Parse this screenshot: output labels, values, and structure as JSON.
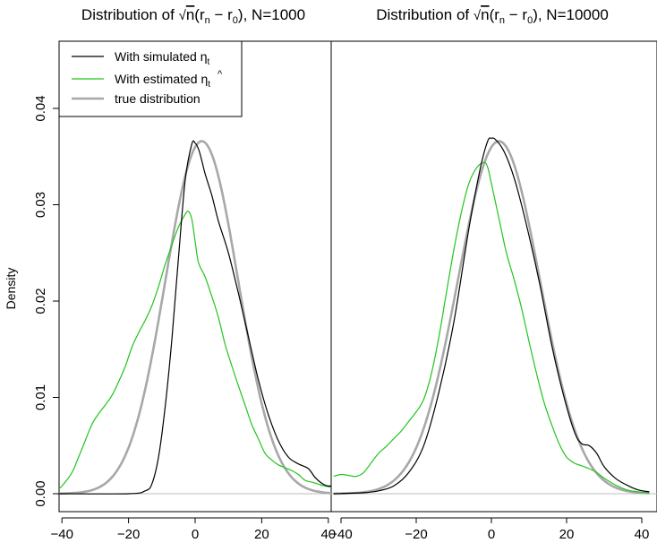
{
  "chart_data": {
    "type": "line",
    "ylabel": "Density",
    "ylim": [
      0,
      0.046
    ],
    "xlim": [
      -42,
      42
    ],
    "yticks": [
      "0.00",
      "0.01",
      "0.02",
      "0.03",
      "0.04"
    ],
    "ytick_values": [
      0,
      0.01,
      0.02,
      0.03,
      0.04
    ],
    "xtick_values": [
      -40,
      -20,
      0,
      20,
      40
    ],
    "legend": {
      "location": "top-left of left panel",
      "entries": [
        {
          "text": "With simulated η",
          "sub": "t",
          "color": "#000000"
        },
        {
          "text": "With estimated ",
          "hat": "η",
          "sub": "t",
          "color": "#00c000"
        },
        {
          "text": "true distribution",
          "color": "#a6a6a6"
        }
      ]
    },
    "colors": {
      "simulated": "#000000",
      "estimated": "#22c41e",
      "true": "#a8a8a8",
      "zero_line": "#bebebe"
    },
    "panels": [
      {
        "title_prefix": "Distribution of ",
        "title_suffix": ", N=1000",
        "xticks": [
          "−40",
          "−20",
          "0",
          "20",
          "40"
        ],
        "series": [
          {
            "name": "With simulated η_t",
            "color": "#000000",
            "x": [
              -42,
              -20,
              -15,
              -13,
              -11,
              -9,
              -7,
              -5,
              -3,
              -1,
              0,
              1,
              2,
              3,
              5,
              7,
              10,
              13,
              16,
              19,
              22,
              25,
              28,
              31,
              34,
              36,
              38,
              40,
              42
            ],
            "y": [
              0,
              0,
              0.0003,
              0.001,
              0.0038,
              0.009,
              0.016,
              0.0245,
              0.0325,
              0.0363,
              0.0364,
              0.0358,
              0.0346,
              0.0332,
              0.031,
              0.0283,
              0.025,
              0.0208,
              0.0163,
              0.0118,
              0.0082,
              0.0055,
              0.0038,
              0.0031,
              0.0026,
              0.0017,
              0.0011,
              0.0008,
              0.0009
            ]
          },
          {
            "name": "With estimated η̂_t",
            "color": "#22c41e",
            "x": [
              -42,
              -40,
              -37,
              -35,
              -33,
              -31,
              -29,
              -27,
              -25,
              -23,
              -21,
              -19,
              -17,
              -15,
              -13,
              -11,
              -9,
              -7,
              -5,
              -3,
              -2,
              -1,
              0,
              1,
              3,
              5,
              7,
              9,
              11,
              13,
              15,
              17,
              19,
              21,
              23,
              25,
              27,
              29,
              31,
              33,
              35,
              37,
              39,
              42
            ],
            "y": [
              0.0002,
              0.0008,
              0.0022,
              0.0038,
              0.0055,
              0.0072,
              0.0083,
              0.0092,
              0.0102,
              0.0116,
              0.0132,
              0.0152,
              0.0167,
              0.018,
              0.0195,
              0.0215,
              0.0238,
              0.0258,
              0.0277,
              0.029,
              0.0293,
              0.0285,
              0.0262,
              0.024,
              0.0225,
              0.0205,
              0.0183,
              0.0155,
              0.0133,
              0.0112,
              0.0092,
              0.0072,
              0.0057,
              0.0042,
              0.0035,
              0.003,
              0.0027,
              0.0024,
              0.002,
              0.0014,
              0.0012,
              0.001,
              0.0008,
              0.0006
            ]
          },
          {
            "name": "true distribution",
            "color": "#a8a8a8",
            "mu": 2.0,
            "sigma": 10.9
          }
        ]
      },
      {
        "title_prefix": "Distribution of ",
        "title_suffix": ", N=10000",
        "xticks": [
          "−40",
          "−20",
          "0",
          "20",
          "40"
        ],
        "series": [
          {
            "name": "With simulated η_t",
            "color": "#000000",
            "x": [
              -42,
              -34,
              -30,
              -26,
              -22,
              -18,
              -14,
              -10,
              -6,
              -3,
              -1,
              0,
              1,
              3,
              5,
              7,
              10,
              13,
              16,
              19,
              22,
              24,
              26,
              28,
              30,
              33,
              36,
              39,
              42
            ],
            "y": [
              0,
              0.0001,
              0.0003,
              0.0008,
              0.0022,
              0.005,
              0.0105,
              0.0178,
              0.0275,
              0.0337,
              0.0366,
              0.0369,
              0.0368,
              0.0358,
              0.034,
              0.0315,
              0.0268,
              0.0215,
              0.0155,
              0.0105,
              0.0065,
              0.0052,
              0.005,
              0.0042,
              0.0028,
              0.0016,
              0.0009,
              0.0004,
              0.0002
            ]
          },
          {
            "name": "With estimated η̂_t",
            "color": "#22c41e",
            "x": [
              -42,
              -40,
              -38,
              -36,
              -34,
              -32,
              -30,
              -28,
              -26,
              -24,
              -22,
              -20,
              -18,
              -16,
              -14,
              -12,
              -10,
              -8,
              -6,
              -4,
              -2,
              -1,
              0,
              2,
              4,
              6,
              8,
              10,
              12,
              14,
              16,
              18,
              20,
              22,
              24,
              26,
              28,
              30,
              33,
              36,
              39,
              42
            ],
            "y": [
              0.0018,
              0.002,
              0.0019,
              0.0018,
              0.0022,
              0.0032,
              0.0042,
              0.0049,
              0.0057,
              0.0065,
              0.0075,
              0.0085,
              0.0098,
              0.0124,
              0.0162,
              0.0208,
              0.0253,
              0.0292,
              0.0322,
              0.0338,
              0.0344,
              0.0339,
              0.0322,
              0.0286,
              0.025,
              0.0223,
              0.0193,
              0.0158,
              0.0125,
              0.0095,
              0.0072,
              0.0052,
              0.0038,
              0.0032,
              0.0029,
              0.0026,
              0.0022,
              0.0016,
              0.0009,
              0.0004,
              0.0002,
              0.0001
            ]
          },
          {
            "name": "true distribution",
            "color": "#a8a8a8",
            "mu": 2.0,
            "sigma": 10.9
          }
        ]
      }
    ]
  }
}
